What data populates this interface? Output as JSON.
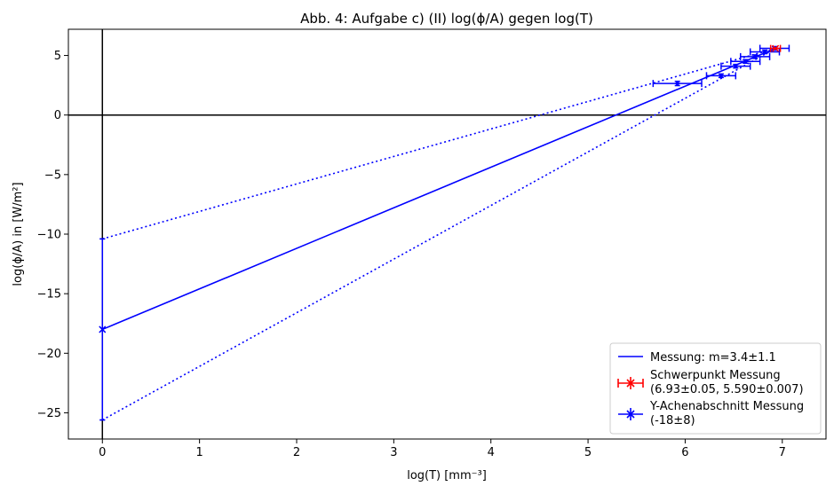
{
  "chart_data": {
    "type": "scatter",
    "title": "Abb. 4: Aufgabe c) (II) log(ϕ/A) gegen log(T)",
    "xlabel": "log(T) [mm⁻³]",
    "ylabel": "log(ϕ/A) in [W/m²]",
    "xlim": [
      -0.35,
      7.45
    ],
    "ylim": [
      -27.2,
      7.2
    ],
    "xticks": [
      0,
      1,
      2,
      3,
      4,
      5,
      6,
      7
    ],
    "yticks": [
      5,
      0,
      -5,
      -10,
      -15,
      -20,
      -25
    ],
    "ytick_labels": [
      "5",
      "0",
      "−5",
      "−10",
      "−15",
      "−20",
      "−25"
    ],
    "reference_lines": {
      "x": 0,
      "y": 0
    },
    "measurement_points": [
      {
        "x": 5.92,
        "y": 2.65,
        "xerr": 0.25,
        "yerr": 0.18
      },
      {
        "x": 6.37,
        "y": 3.3,
        "xerr": 0.15,
        "yerr": 0.15
      },
      {
        "x": 6.52,
        "y": 4.1,
        "xerr": 0.15,
        "yerr": 0.15
      },
      {
        "x": 6.62,
        "y": 4.5,
        "xerr": 0.15,
        "yerr": 0.15
      },
      {
        "x": 6.72,
        "y": 4.9,
        "xerr": 0.15,
        "yerr": 0.15
      },
      {
        "x": 6.82,
        "y": 5.3,
        "xerr": 0.15,
        "yerr": 0.15
      },
      {
        "x": 6.92,
        "y": 5.6,
        "xerr": 0.15,
        "yerr": 0.15
      }
    ],
    "series": [
      {
        "name": "Messung: m=3.4±1.1",
        "kind": "line",
        "color": "#0000ff",
        "x": [
          0,
          6.93
        ],
        "y": [
          -18.0,
          5.59
        ]
      },
      {
        "kind": "dotted-line",
        "color": "#0000ff",
        "x": [
          0,
          6.93
        ],
        "y": [
          -10.4,
          5.59
        ]
      },
      {
        "kind": "dotted-line",
        "color": "#0000ff",
        "x": [
          0,
          6.93
        ],
        "y": [
          -25.6,
          5.59
        ]
      },
      {
        "name": "Schwerpunkt Messung\n(6.93±0.05, 5.590±0.007)",
        "kind": "errorbar-point",
        "color": "#ff0000",
        "x": 6.93,
        "y": 5.59,
        "xerr": 0.05,
        "yerr": 0.007
      },
      {
        "name": "Y-Achenabschnitt Messung\n(-18±8)",
        "kind": "errorbar-point",
        "color": "#0000ff",
        "x": 0,
        "y": -18.0,
        "xerr": 0,
        "yerr": 7.6
      }
    ],
    "legend_position": "lower-right",
    "grid": false
  }
}
